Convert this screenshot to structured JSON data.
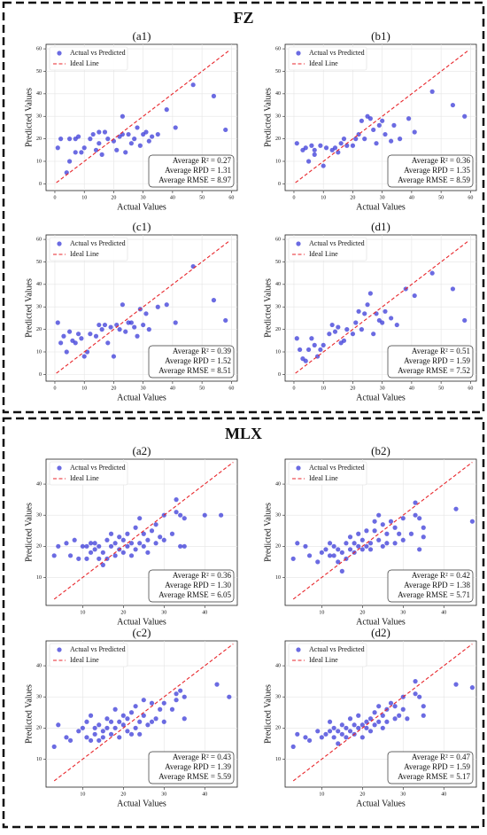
{
  "sections": [
    {
      "title": "FZ"
    },
    {
      "title": "MLX"
    }
  ],
  "chart_data": [
    {
      "type": "scatter",
      "title": "(a1)",
      "xlabel": "Actual Values",
      "ylabel": "Predicted Values",
      "xlim": [
        -3,
        62
      ],
      "ylim": [
        -3,
        62
      ],
      "xticks": [
        0,
        10,
        20,
        30,
        40,
        50,
        60
      ],
      "yticks": [
        0,
        10,
        20,
        30,
        40,
        50,
        60
      ],
      "grid": true,
      "series": [
        {
          "name": "Actual vs Predicted",
          "color": "#3a3ad8",
          "x": [
            1,
            2,
            4,
            5,
            5,
            7,
            7,
            8,
            9,
            10,
            12,
            13,
            14,
            15,
            15,
            16,
            17,
            18,
            20,
            21,
            22,
            23,
            23,
            24,
            25,
            26,
            27,
            28,
            29,
            30,
            31,
            32,
            33,
            35,
            38,
            41,
            47,
            54,
            58
          ],
          "values": [
            16,
            20,
            5,
            10,
            20,
            14,
            20,
            21,
            14,
            16,
            20,
            22,
            15,
            23,
            18,
            13,
            23,
            20,
            19,
            15,
            21,
            22,
            30,
            14,
            22,
            18,
            20,
            25,
            17,
            22,
            23,
            19,
            21,
            22,
            33,
            25,
            44,
            39,
            24
          ]
        },
        {
          "name": "Ideal Line",
          "type": "line",
          "dash": true,
          "color": "#e8262b",
          "x": [
            0.5,
            59
          ],
          "values": [
            0.5,
            59
          ]
        }
      ],
      "annotations": [
        "Average R² = 0.27",
        "Average RPD = 1.31",
        "Average RMSE = 8.97"
      ]
    },
    {
      "type": "scatter",
      "title": "(b1)",
      "xlabel": "Actual Values",
      "ylabel": "Predicted Values",
      "xlim": [
        -3,
        62
      ],
      "ylim": [
        -3,
        62
      ],
      "xticks": [
        0,
        10,
        20,
        30,
        40,
        50,
        60
      ],
      "yticks": [
        0,
        10,
        20,
        30,
        40,
        50,
        60
      ],
      "grid": true,
      "series": [
        {
          "name": "Actual vs Predicted",
          "color": "#3a3ad8",
          "x": [
            1,
            3,
            4,
            5,
            6,
            7,
            7,
            9,
            10,
            11,
            13,
            14,
            15,
            16,
            17,
            18,
            20,
            21,
            22,
            23,
            24,
            25,
            26,
            27,
            28,
            29,
            30,
            31,
            33,
            34,
            36,
            39,
            41,
            47,
            54,
            58
          ],
          "values": [
            18,
            15,
            16,
            10,
            17,
            13,
            15,
            17,
            8,
            16,
            15,
            16,
            14,
            18,
            20,
            17,
            17,
            20,
            22,
            28,
            20,
            30,
            29,
            24,
            18,
            26,
            28,
            22,
            19,
            26,
            20,
            29,
            23,
            41,
            35,
            30
          ]
        },
        {
          "name": "Ideal Line",
          "type": "line",
          "dash": true,
          "color": "#e8262b",
          "x": [
            0.5,
            59
          ],
          "values": [
            0.5,
            59
          ]
        }
      ],
      "annotations": [
        "Average R² = 0.36",
        "Average RPD = 1.35",
        "Average RMSE = 8.59"
      ]
    },
    {
      "type": "scatter",
      "title": "(c1)",
      "xlabel": "Actual Values",
      "ylabel": "Predicted Values",
      "xlim": [
        -3,
        62
      ],
      "ylim": [
        -3,
        62
      ],
      "xticks": [
        0,
        10,
        20,
        30,
        40,
        50,
        60
      ],
      "yticks": [
        0,
        10,
        20,
        30,
        40,
        50,
        60
      ],
      "grid": true,
      "series": [
        {
          "name": "Actual vs Predicted",
          "color": "#3a3ad8",
          "x": [
            1,
            2,
            3,
            4,
            5,
            6,
            7,
            8,
            9,
            10,
            11,
            12,
            14,
            15,
            16,
            17,
            18,
            19,
            20,
            21,
            22,
            23,
            24,
            25,
            26,
            27,
            28,
            29,
            30,
            31,
            32,
            35,
            38,
            41,
            47,
            54,
            58
          ],
          "values": [
            23,
            14,
            17,
            10,
            19,
            15,
            14,
            18,
            16,
            8,
            10,
            18,
            17,
            22,
            20,
            22,
            14,
            21,
            8,
            22,
            20,
            31,
            19,
            23,
            23,
            21,
            17,
            29,
            22,
            27,
            20,
            30,
            31,
            23,
            48,
            33,
            24
          ]
        },
        {
          "name": "Ideal Line",
          "type": "line",
          "dash": true,
          "color": "#e8262b",
          "x": [
            0.5,
            59
          ],
          "values": [
            0.5,
            59
          ]
        }
      ],
      "annotations": [
        "Average R² = 0.39",
        "Average RPD = 1.52",
        "Average RMSE = 8.51"
      ]
    },
    {
      "type": "scatter",
      "title": "(d1)",
      "xlabel": "Actual Values",
      "ylabel": "Predicted Values",
      "xlim": [
        -3,
        62
      ],
      "ylim": [
        -3,
        62
      ],
      "xticks": [
        0,
        10,
        20,
        30,
        40,
        50,
        60
      ],
      "yticks": [
        0,
        10,
        20,
        30,
        40,
        50,
        60
      ],
      "grid": true,
      "series": [
        {
          "name": "Actual vs Predicted",
          "color": "#3a3ad8",
          "x": [
            1,
            2,
            3,
            4,
            5,
            6,
            7,
            8,
            9,
            10,
            12,
            13,
            14,
            15,
            16,
            17,
            18,
            20,
            21,
            22,
            23,
            24,
            25,
            26,
            27,
            28,
            29,
            30,
            31,
            33,
            35,
            38,
            41,
            47,
            54,
            58
          ],
          "values": [
            16,
            11,
            7,
            6,
            11,
            16,
            13,
            8,
            11,
            13,
            18,
            22,
            19,
            21,
            14,
            15,
            20,
            18,
            23,
            28,
            20,
            27,
            31,
            36,
            18,
            27,
            24,
            23,
            28,
            25,
            22,
            38,
            35,
            45,
            38,
            24
          ]
        },
        {
          "name": "Ideal Line",
          "type": "line",
          "dash": true,
          "color": "#e8262b",
          "x": [
            0.5,
            59
          ],
          "values": [
            0.5,
            59
          ]
        }
      ],
      "annotations": [
        "Average R² = 0.51",
        "Average RPD = 1.59",
        "Average RMSE = 7.52"
      ]
    },
    {
      "type": "scatter",
      "title": "(a2)",
      "xlabel": "Actual Values",
      "ylabel": "Predicted Values",
      "xlim": [
        1,
        48
      ],
      "ylim": [
        1,
        48
      ],
      "xticks": [
        10,
        20,
        30,
        40
      ],
      "yticks": [
        10,
        20,
        30,
        40
      ],
      "grid": true,
      "series": [
        {
          "name": "Actual vs Predicted",
          "color": "#3a3ad8",
          "x": [
            3,
            4,
            6,
            7,
            8,
            9,
            10,
            11,
            11,
            12,
            12,
            13,
            13,
            14,
            14,
            15,
            15,
            16,
            16,
            17,
            17,
            18,
            18,
            19,
            19,
            20,
            20,
            21,
            21,
            22,
            22,
            23,
            23,
            24,
            24,
            25,
            25,
            26,
            26,
            27,
            28,
            28,
            29,
            30,
            30,
            32,
            33,
            33,
            34,
            34,
            35,
            35,
            40,
            44
          ],
          "values": [
            17,
            20,
            21,
            17,
            22,
            16,
            20,
            16,
            20,
            21,
            18,
            21,
            19,
            16,
            20,
            14,
            18,
            22,
            16,
            20,
            24,
            17,
            21,
            19,
            23,
            18,
            22,
            20,
            24,
            17,
            21,
            26,
            19,
            29,
            21,
            20,
            24,
            22,
            18,
            25,
            27,
            21,
            23,
            22,
            30,
            24,
            31,
            35,
            20,
            30,
            29,
            20,
            30,
            30
          ]
        },
        {
          "name": "Ideal Line",
          "type": "line",
          "dash": true,
          "color": "#e8262b",
          "x": [
            3,
            47
          ],
          "values": [
            3,
            47
          ]
        }
      ],
      "annotations": [
        "Average R² = 0.36",
        "Average RPD = 1.30",
        "Average RMSE = 6.05"
      ]
    },
    {
      "type": "scatter",
      "title": "(b2)",
      "xlabel": "Actual Values",
      "ylabel": "Predicted Values",
      "xlim": [
        1,
        48
      ],
      "ylim": [
        1,
        48
      ],
      "xticks": [
        10,
        20,
        30,
        40
      ],
      "yticks": [
        10,
        20,
        30,
        40
      ],
      "grid": true,
      "series": [
        {
          "name": "Actual vs Predicted",
          "color": "#3a3ad8",
          "x": [
            3,
            4,
            6,
            7,
            9,
            10,
            11,
            12,
            12,
            13,
            13,
            14,
            14,
            15,
            15,
            16,
            16,
            17,
            17,
            18,
            18,
            19,
            19,
            20,
            20,
            21,
            21,
            22,
            22,
            23,
            23,
            24,
            24,
            25,
            25,
            26,
            26,
            27,
            28,
            28,
            29,
            30,
            30,
            32,
            33,
            33,
            34,
            34,
            35,
            35,
            43,
            47
          ],
          "values": [
            16,
            21,
            20,
            17,
            15,
            18,
            19,
            17,
            21,
            20,
            17,
            19,
            15,
            12,
            18,
            21,
            16,
            19,
            23,
            18,
            21,
            20,
            24,
            19,
            22,
            20,
            25,
            19,
            21,
            25,
            28,
            30,
            22,
            20,
            27,
            24,
            21,
            28,
            26,
            21,
            24,
            22,
            29,
            24,
            34,
            30,
            19,
            29,
            26,
            23,
            32,
            28
          ]
        },
        {
          "name": "Ideal Line",
          "type": "line",
          "dash": true,
          "color": "#e8262b",
          "x": [
            3,
            47
          ],
          "values": [
            3,
            47
          ]
        }
      ],
      "annotations": [
        "Average R² = 0.42",
        "Average RPD = 1.38",
        "Average RMSE = 5.71"
      ]
    },
    {
      "type": "scatter",
      "title": "(c2)",
      "xlabel": "Actual Values",
      "ylabel": "Predicted Values",
      "xlim": [
        1,
        48
      ],
      "ylim": [
        1,
        48
      ],
      "xticks": [
        10,
        20,
        30,
        40
      ],
      "yticks": [
        10,
        20,
        30,
        40
      ],
      "grid": true,
      "series": [
        {
          "name": "Actual vs Predicted",
          "color": "#3a3ad8",
          "x": [
            3,
            4,
            6,
            7,
            9,
            10,
            11,
            11,
            12,
            12,
            13,
            13,
            14,
            14,
            15,
            15,
            16,
            16,
            17,
            17,
            18,
            18,
            19,
            19,
            20,
            20,
            21,
            21,
            22,
            22,
            23,
            23,
            24,
            24,
            25,
            25,
            26,
            27,
            27,
            28,
            29,
            30,
            30,
            32,
            33,
            33,
            34,
            35,
            35,
            43,
            46
          ],
          "values": [
            14,
            21,
            17,
            16,
            19,
            20,
            17,
            22,
            24,
            16,
            20,
            18,
            16,
            21,
            17,
            19,
            20,
            23,
            18,
            22,
            20,
            26,
            17,
            22,
            21,
            24,
            19,
            23,
            18,
            25,
            20,
            27,
            22,
            18,
            24,
            29,
            21,
            22,
            28,
            23,
            26,
            28,
            22,
            26,
            31,
            29,
            32,
            30,
            23,
            34,
            30
          ]
        },
        {
          "name": "Ideal Line",
          "type": "line",
          "dash": true,
          "color": "#e8262b",
          "x": [
            3,
            47
          ],
          "values": [
            3,
            47
          ]
        }
      ],
      "annotations": [
        "Average R² = 0.43",
        "Average RPD = 1.39",
        "Average RMSE = 5.59"
      ]
    },
    {
      "type": "scatter",
      "title": "(d2)",
      "xlabel": "Actual Values",
      "ylabel": "Predicted Values",
      "xlim": [
        1,
        48
      ],
      "ylim": [
        1,
        48
      ],
      "xticks": [
        10,
        20,
        30,
        40
      ],
      "yticks": [
        10,
        20,
        30,
        40
      ],
      "grid": true,
      "series": [
        {
          "name": "Actual vs Predicted",
          "color": "#3a3ad8",
          "x": [
            3,
            4,
            6,
            7,
            9,
            10,
            11,
            12,
            12,
            13,
            13,
            14,
            14,
            15,
            15,
            16,
            16,
            17,
            17,
            18,
            18,
            19,
            19,
            20,
            20,
            21,
            21,
            22,
            22,
            23,
            23,
            24,
            24,
            25,
            25,
            26,
            26,
            27,
            28,
            28,
            29,
            30,
            30,
            31,
            33,
            33,
            34,
            35,
            35,
            43,
            47
          ],
          "values": [
            14,
            18,
            17,
            16,
            19,
            17,
            18,
            19,
            22,
            17,
            20,
            15,
            19,
            18,
            21,
            17,
            20,
            19,
            23,
            21,
            18,
            20,
            24,
            21,
            17,
            22,
            20,
            23,
            19,
            25,
            21,
            27,
            22,
            24,
            20,
            26,
            22,
            28,
            23,
            27,
            24,
            26,
            30,
            23,
            35,
            31,
            30,
            27,
            24,
            34,
            33
          ]
        },
        {
          "name": "Ideal Line",
          "type": "line",
          "dash": true,
          "color": "#e8262b",
          "x": [
            3,
            47
          ],
          "values": [
            3,
            47
          ]
        }
      ],
      "annotations": [
        "Average R² = 0.47",
        "Average RPD = 1.59",
        "Average RMSE = 5.17"
      ]
    }
  ]
}
